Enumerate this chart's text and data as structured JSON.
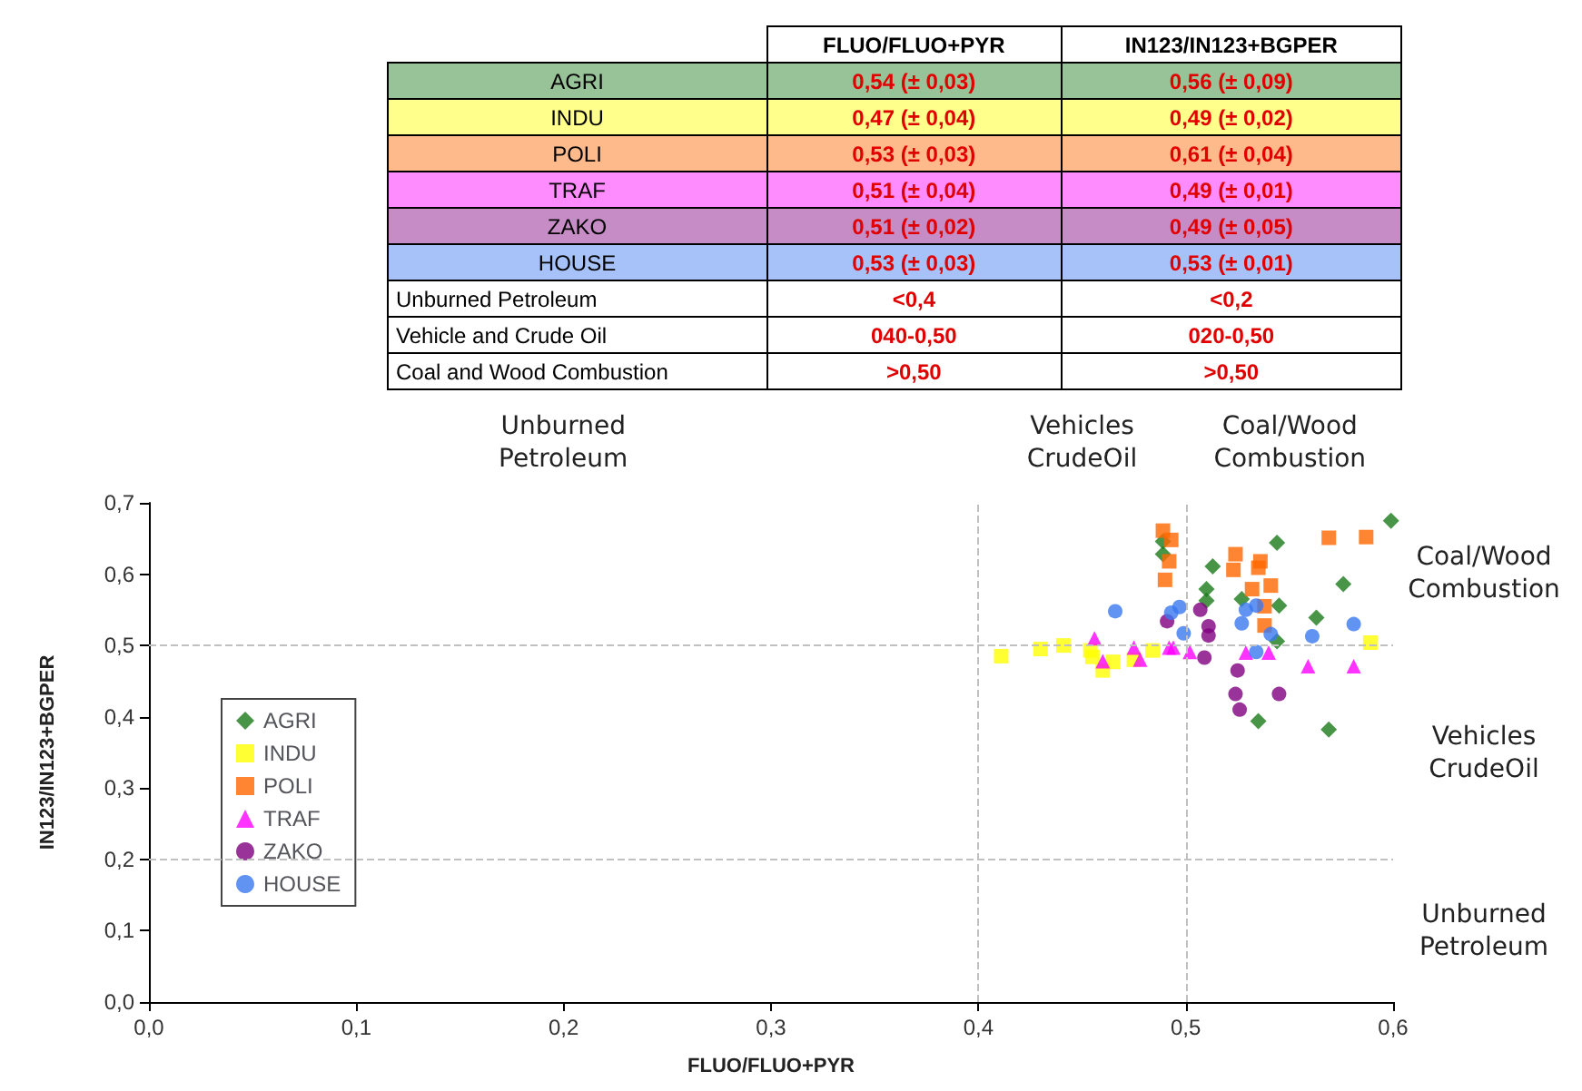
{
  "chart_data": {
    "type": "scatter",
    "xlabel": "FLUO/FLUO+PYR",
    "ylabel": "IN123/IN123+BGPER",
    "xlim": [
      0,
      0.6
    ],
    "ylim": [
      0,
      0.7
    ],
    "xticks": [
      {
        "value": 0,
        "label": "0,0"
      },
      {
        "value": 0.1,
        "label": "0,1"
      },
      {
        "value": 0.2,
        "label": "0,2"
      },
      {
        "value": 0.3,
        "label": "0,3"
      },
      {
        "value": 0.4,
        "label": "0,4"
      },
      {
        "value": 0.5,
        "label": "0,5"
      },
      {
        "value": 0.6,
        "label": "0,6"
      }
    ],
    "yticks": [
      {
        "value": 0,
        "label": "0,0"
      },
      {
        "value": 0.1,
        "label": "0,1"
      },
      {
        "value": 0.2,
        "label": "0,2"
      },
      {
        "value": 0.3,
        "label": "0,3"
      },
      {
        "value": 0.4,
        "label": "0,4"
      },
      {
        "value": 0.5,
        "label": "0,5"
      },
      {
        "value": 0.6,
        "label": "0,6"
      },
      {
        "value": 0.7,
        "label": "0,7"
      }
    ],
    "grid": false,
    "legend": "left",
    "ref_lines": [
      {
        "axis": "x",
        "value": 0.4,
        "color": "#c0c0c0",
        "line_style": "dashed"
      },
      {
        "axis": "x",
        "value": 0.5,
        "color": "#c0c0c0",
        "line_style": "dashed"
      },
      {
        "axis": "y",
        "value": 0.2,
        "color": "#c0c0c0",
        "line_style": "dashed"
      },
      {
        "axis": "y",
        "value": 0.5,
        "color": "#c0c0c0",
        "line_style": "dashed"
      }
    ],
    "series": [
      {
        "name": "AGRI",
        "color": "#1a7a1a",
        "marker": "diamond",
        "x": [
          0.599,
          0.544,
          0.489,
          0.489,
          0.513,
          0.576,
          0.51,
          0.51,
          0.527,
          0.545,
          0.563,
          0.544,
          0.535,
          0.569
        ],
        "values": [
          0.675,
          0.644,
          0.646,
          0.628,
          0.611,
          0.586,
          0.579,
          0.563,
          0.565,
          0.556,
          0.539,
          0.506,
          0.394,
          0.382
        ]
      },
      {
        "name": "INDU",
        "color": "#ffff00",
        "marker": "square",
        "x": [
          0.411,
          0.43,
          0.441,
          0.454,
          0.455,
          0.46,
          0.465,
          0.475,
          0.484,
          0.589
        ],
        "values": [
          0.485,
          0.495,
          0.5,
          0.493,
          0.484,
          0.465,
          0.477,
          0.48,
          0.493,
          0.504
        ]
      },
      {
        "name": "POLI",
        "color": "#ff6600",
        "marker": "square",
        "x": [
          0.489,
          0.493,
          0.492,
          0.49,
          0.524,
          0.523,
          0.536,
          0.535,
          0.532,
          0.541,
          0.538,
          0.538,
          0.569,
          0.587
        ],
        "values": [
          0.661,
          0.648,
          0.618,
          0.592,
          0.628,
          0.606,
          0.618,
          0.609,
          0.579,
          0.584,
          0.555,
          0.528,
          0.651,
          0.652
        ]
      },
      {
        "name": "TRAF",
        "color": "#ff00ff",
        "marker": "triangle",
        "x": [
          0.456,
          0.46,
          0.475,
          0.478,
          0.492,
          0.494,
          0.502,
          0.529,
          0.54,
          0.559,
          0.581
        ],
        "values": [
          0.51,
          0.478,
          0.497,
          0.48,
          0.497,
          0.497,
          0.491,
          0.49,
          0.49,
          0.471,
          0.471
        ]
      },
      {
        "name": "ZAKO",
        "color": "#800080",
        "marker": "circle",
        "x": [
          0.507,
          0.491,
          0.511,
          0.511,
          0.509,
          0.525,
          0.524,
          0.526,
          0.545
        ],
        "values": [
          0.55,
          0.534,
          0.527,
          0.514,
          0.483,
          0.465,
          0.432,
          0.41,
          0.432
        ]
      },
      {
        "name": "HOUSE",
        "color": "#3a78f0",
        "marker": "circle",
        "x": [
          0.466,
          0.493,
          0.497,
          0.499,
          0.527,
          0.529,
          0.534,
          0.541,
          0.534,
          0.561,
          0.581
        ],
        "values": [
          0.548,
          0.546,
          0.554,
          0.517,
          0.531,
          0.55,
          0.556,
          0.516,
          0.491,
          0.513,
          0.53
        ]
      }
    ],
    "annotations": [
      "Unburned Petroleum",
      "Vehicles CrudeOil",
      "Coal/Wood Combustion",
      "Coal/Wood Combustion",
      "Vehicles CrudeOil",
      "Unburned Petroleum",
      "FLUO/FLUO+PYR",
      "IN123/IN123+BGPER",
      "AGRI",
      "0,54 (± 0,03)",
      "0,56 (± 0,09)",
      "INDU",
      "0,47 (± 0,04)",
      "0,49 (± 0,02)",
      "POLI",
      "0,53 (± 0,03)",
      "0,61 (± 0,04)",
      "TRAF",
      "0,51 (± 0,04)",
      "0,49 (± 0,01)",
      "ZAKO",
      "0,51 (± 0,02)",
      "0,49 (± 0,05)",
      "HOUSE",
      "0,53 (± 0,03)",
      "0,53 (± 0,01)",
      "Unburned Petroleum",
      "<0,4",
      "<0,2",
      "Vehicle and Crude Oil",
      "040-0,50",
      "020-0,50",
      "Coal and Wood Combustion",
      ">0,50",
      ">0,50"
    ]
  }
}
